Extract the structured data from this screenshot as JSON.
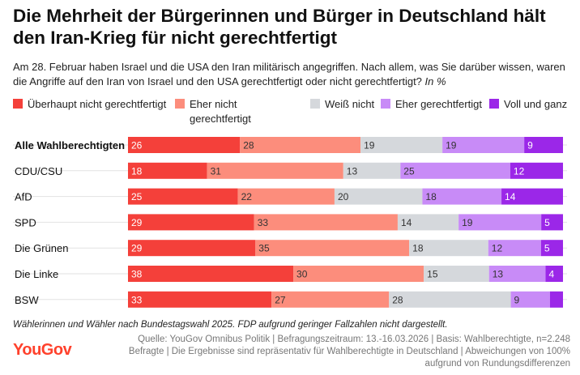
{
  "title": "Die Mehrheit der Bürgerinnen und Bürger in Deutschland hält den Iran-Krieg für nicht gerechtfertigt",
  "subtitle": "Am 28. Februar haben Israel und die USA den Iran militärisch angegriffen. Nach allem, was Sie darüber wissen, waren die Angriffe auf den Iran von Israel und den USA gerechtfertigt oder nicht gerechtfertigt?",
  "unit": "In %",
  "footnote": "Wählerinnen und Wähler nach Bundestagswahl 2025. FDP aufgrund geringer Fallzahlen nicht dargestellt.",
  "source": "Quelle: YouGov Omnibus Politik | Befragungszeitraum: 13.-16.03.2026 | Basis: Wahlberechtigte, n=2.248 Befragte | Die Ergebnisse sind repräsentativ für Wahlberechtigte in Deutschland | Abweichungen von 100% aufgrund von Rundungsdifferenzen",
  "logo": "YouGov",
  "chart_data": {
    "type": "bar",
    "orientation": "horizontal",
    "stacked": true,
    "categories": [
      "Alle Wahlberechtigten",
      "CDU/CSU",
      "AfD",
      "SPD",
      "Die Grünen",
      "Die Linke",
      "BSW"
    ],
    "series": [
      {
        "name": "Überhaupt nicht gerechtfertigt",
        "color": "#f4403a",
        "values": [
          26,
          18,
          25,
          29,
          29,
          38,
          33
        ]
      },
      {
        "name": "Eher nicht gerechtfertigt",
        "color": "#fc8d7c",
        "values": [
          28,
          31,
          22,
          33,
          35,
          30,
          27
        ]
      },
      {
        "name": "Weiß nicht",
        "color": "#d5d8dc",
        "values": [
          19,
          13,
          20,
          14,
          18,
          15,
          28
        ]
      },
      {
        "name": "Eher gerechtfertigt",
        "color": "#c88bf7",
        "values": [
          19,
          25,
          18,
          19,
          12,
          13,
          9
        ]
      },
      {
        "name": "Voll und ganz",
        "color": "#9b27e8",
        "values": [
          9,
          12,
          14,
          5,
          5,
          4,
          3
        ]
      }
    ],
    "labels": [
      [
        "26",
        "28",
        "19",
        "19",
        "9"
      ],
      [
        "18",
        "31",
        "13",
        "25",
        "12"
      ],
      [
        "25",
        "22",
        "20",
        "18",
        "14"
      ],
      [
        "29",
        "33",
        "14",
        "19",
        "5"
      ],
      [
        "29",
        "35",
        "18",
        "12",
        "5"
      ],
      [
        "38",
        "30",
        "15",
        "13",
        "4"
      ],
      [
        "33",
        "27",
        "28",
        "9",
        ""
      ]
    ],
    "bold_category": "Alle Wahlberechtigten",
    "xlim": [
      0,
      100
    ]
  }
}
